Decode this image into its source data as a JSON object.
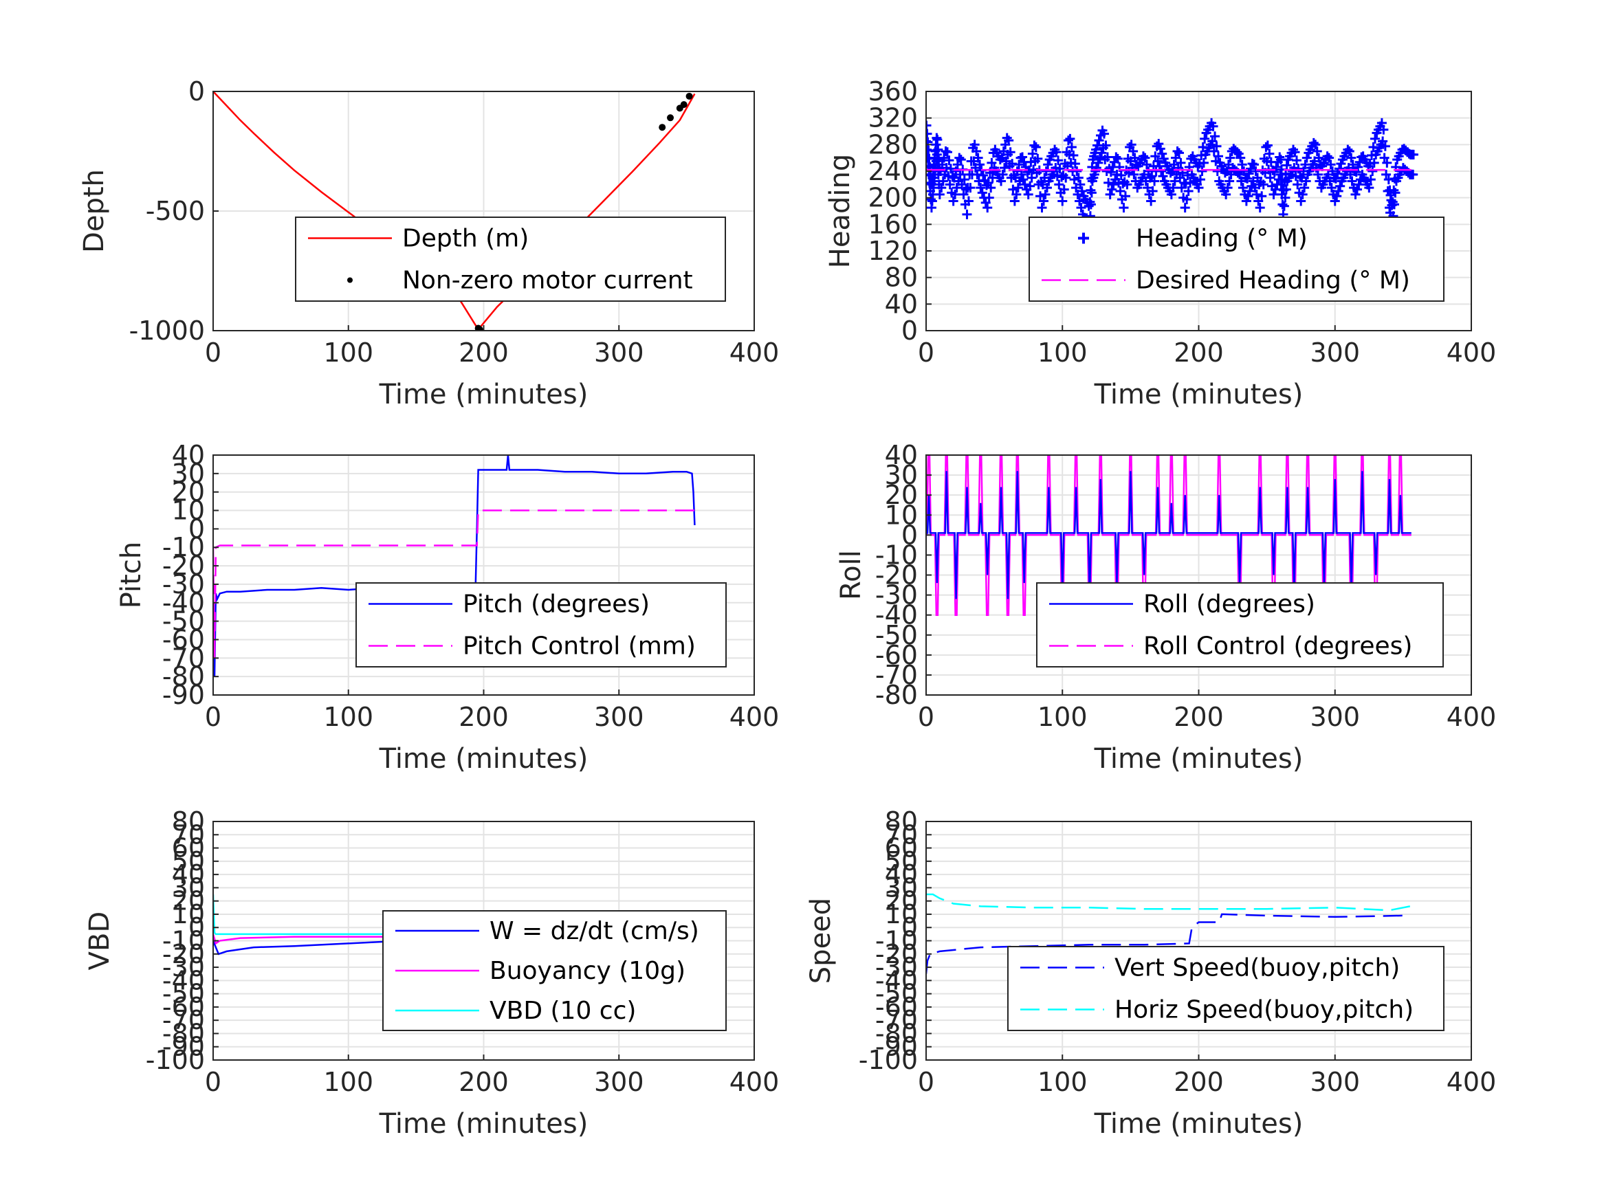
{
  "chart_data": [
    {
      "id": "depth",
      "type": "line",
      "xlabel": "Time (minutes)",
      "ylabel": "Depth",
      "xlim": [
        0,
        400
      ],
      "ylim": [
        -1000,
        0
      ],
      "xticks": [
        "0",
        "100",
        "200",
        "300",
        "400"
      ],
      "yticks": [
        {
          "v": -1000,
          "t": "-1000"
        },
        {
          "v": -500,
          "t": "-500"
        },
        {
          "v": 0,
          "t": "0"
        }
      ],
      "grid": true,
      "legend": "lower-center",
      "series": [
        {
          "name": "Depth (m)",
          "color": "#ff0000",
          "style": "solid",
          "x": [
            0,
            10,
            20,
            30,
            45,
            60,
            80,
            100,
            120,
            140,
            160,
            180,
            196,
            210,
            230,
            250,
            270,
            290,
            310,
            330,
            345,
            356
          ],
          "y": [
            0,
            -60,
            -120,
            -175,
            -255,
            -330,
            -420,
            -505,
            -590,
            -675,
            -760,
            -850,
            -995,
            -900,
            -790,
            -680,
            -565,
            -450,
            -335,
            -215,
            -120,
            -10
          ]
        },
        {
          "name": "Non-zero motor current",
          "color": "#000000",
          "style": "dots",
          "x": [
            196,
            197,
            332,
            338,
            345,
            348,
            352
          ],
          "y": [
            -990,
            -995,
            -150,
            -110,
            -70,
            -55,
            -20
          ]
        }
      ]
    },
    {
      "id": "heading",
      "type": "scatter",
      "xlabel": "Time (minutes)",
      "ylabel": "Heading",
      "xlim": [
        0,
        400
      ],
      "ylim": [
        0,
        360
      ],
      "xticks": [
        "0",
        "100",
        "200",
        "300",
        "400"
      ],
      "yticks": [
        {
          "v": 0,
          "t": "0"
        },
        {
          "v": 40,
          "t": "40"
        },
        {
          "v": 80,
          "t": "80"
        },
        {
          "v": 120,
          "t": "120"
        },
        {
          "v": 160,
          "t": "160"
        },
        {
          "v": 200,
          "t": "200"
        },
        {
          "v": 240,
          "t": "240"
        },
        {
          "v": 280,
          "t": "280"
        },
        {
          "v": 320,
          "t": "320"
        },
        {
          "v": 360,
          "t": "360"
        }
      ],
      "grid": true,
      "legend": "lower-right",
      "series": [
        {
          "name": "Heading (° M)",
          "color": "#0000ff",
          "style": "plus",
          "x": [
            0,
            2,
            4,
            6,
            8,
            10,
            15,
            20,
            25,
            30,
            35,
            40,
            45,
            50,
            55,
            60,
            65,
            70,
            75,
            80,
            85,
            90,
            95,
            100,
            105,
            110,
            115,
            120,
            122,
            125,
            130,
            135,
            140,
            145,
            150,
            155,
            160,
            165,
            170,
            175,
            180,
            185,
            190,
            195,
            200,
            205,
            210,
            215,
            220,
            225,
            230,
            235,
            240,
            245,
            250,
            255,
            260,
            262,
            265,
            270,
            275,
            280,
            285,
            290,
            295,
            300,
            305,
            310,
            315,
            320,
            325,
            330,
            335,
            340,
            342,
            345,
            350,
            355
          ],
          "y": [
            300,
            250,
            200,
            240,
            280,
            220,
            260,
            210,
            250,
            190,
            270,
            230,
            200,
            260,
            240,
            280,
            210,
            250,
            220,
            270,
            200,
            240,
            260,
            210,
            280,
            230,
            190,
            170,
            240,
            260,
            290,
            220,
            250,
            200,
            270,
            230,
            250,
            210,
            270,
            240,
            220,
            260,
            200,
            250,
            230,
            280,
            300,
            240,
            220,
            260,
            250,
            210,
            240,
            200,
            270,
            220,
            250,
            190,
            240,
            260,
            210,
            250,
            270,
            230,
            250,
            210,
            240,
            260,
            220,
            250,
            230,
            280,
            300,
            200,
            170,
            240,
            260,
            250
          ]
        },
        {
          "name": "Desired Heading (° M)",
          "color": "#ff00ff",
          "style": "dashed",
          "x": [
            0,
            356
          ],
          "y": [
            242,
            242
          ]
        }
      ]
    },
    {
      "id": "pitch",
      "type": "line",
      "xlabel": "Time (minutes)",
      "ylabel": "Pitch",
      "xlim": [
        0,
        400
      ],
      "ylim": [
        -90,
        40
      ],
      "xticks": [
        "0",
        "100",
        "200",
        "300",
        "400"
      ],
      "yticks": [
        {
          "v": -90,
          "t": "-90"
        },
        {
          "v": -80,
          "t": "-80"
        },
        {
          "v": -70,
          "t": "-70"
        },
        {
          "v": -60,
          "t": "-60"
        },
        {
          "v": -50,
          "t": "-50"
        },
        {
          "v": -40,
          "t": "-40"
        },
        {
          "v": -30,
          "t": "-30"
        },
        {
          "v": -20,
          "t": "-20"
        },
        {
          "v": -10,
          "t": "-10"
        },
        {
          "v": 0,
          "t": "0"
        },
        {
          "v": 10,
          "t": "10"
        },
        {
          "v": 20,
          "t": "20"
        },
        {
          "v": 30,
          "t": "30"
        },
        {
          "v": 40,
          "t": "40"
        }
      ],
      "grid": true,
      "legend": "lower-right",
      "series": [
        {
          "name": "Pitch (degrees)",
          "color": "#0000ff",
          "style": "solid",
          "x": [
            0,
            1,
            2,
            3,
            5,
            10,
            20,
            40,
            60,
            80,
            100,
            120,
            140,
            160,
            180,
            194,
            195,
            196,
            200,
            217,
            218,
            219,
            240,
            260,
            280,
            300,
            320,
            340,
            350,
            354,
            355,
            356
          ],
          "y": [
            -40,
            -80,
            -35,
            -38,
            -35,
            -34,
            -34,
            -33,
            -33,
            -32,
            -33,
            -32,
            -32,
            -31,
            -31,
            -31,
            0,
            32,
            32,
            32,
            40,
            32,
            32,
            31,
            31,
            30,
            30,
            31,
            31,
            30,
            20,
            2
          ]
        },
        {
          "name": "Pitch Control (mm)",
          "color": "#ff00ff",
          "style": "dashed",
          "x": [
            0,
            1,
            2,
            5,
            195,
            196,
            356
          ],
          "y": [
            -10,
            -70,
            -10,
            -9,
            -9,
            10,
            10
          ]
        }
      ]
    },
    {
      "id": "roll",
      "type": "line",
      "xlabel": "Time (minutes)",
      "ylabel": "Roll",
      "xlim": [
        0,
        400
      ],
      "ylim": [
        -80,
        40
      ],
      "xticks": [
        "0",
        "100",
        "200",
        "300",
        "400"
      ],
      "yticks": [
        {
          "v": -80,
          "t": "-80"
        },
        {
          "v": -70,
          "t": "-70"
        },
        {
          "v": -60,
          "t": "-60"
        },
        {
          "v": -50,
          "t": "-50"
        },
        {
          "v": -40,
          "t": "-40"
        },
        {
          "v": -30,
          "t": "-30"
        },
        {
          "v": -20,
          "t": "-20"
        },
        {
          "v": -10,
          "t": "-10"
        },
        {
          "v": 0,
          "t": "0"
        },
        {
          "v": 10,
          "t": "10"
        },
        {
          "v": 20,
          "t": "20"
        },
        {
          "v": 30,
          "t": "30"
        },
        {
          "v": 40,
          "t": "40"
        }
      ],
      "grid": true,
      "legend": "lower-right",
      "spikes": [
        {
          "x": 2,
          "y": 25
        },
        {
          "x": 8,
          "y": -30
        },
        {
          "x": 15,
          "y": 40
        },
        {
          "x": 22,
          "y": -40
        },
        {
          "x": 30,
          "y": 30
        },
        {
          "x": 40,
          "y": 20
        },
        {
          "x": 45,
          "y": -25
        },
        {
          "x": 55,
          "y": 30
        },
        {
          "x": 60,
          "y": -40
        },
        {
          "x": 67,
          "y": 40
        },
        {
          "x": 72,
          "y": -30
        },
        {
          "x": 90,
          "y": 30
        },
        {
          "x": 100,
          "y": -35
        },
        {
          "x": 110,
          "y": 30
        },
        {
          "x": 120,
          "y": -40
        },
        {
          "x": 128,
          "y": 35
        },
        {
          "x": 140,
          "y": -30
        },
        {
          "x": 150,
          "y": 40
        },
        {
          "x": 160,
          "y": -25
        },
        {
          "x": 170,
          "y": 30
        },
        {
          "x": 180,
          "y": 20
        },
        {
          "x": 190,
          "y": 25
        },
        {
          "x": 215,
          "y": 25
        },
        {
          "x": 230,
          "y": -30
        },
        {
          "x": 245,
          "y": 30
        },
        {
          "x": 255,
          "y": -25
        },
        {
          "x": 265,
          "y": 30
        },
        {
          "x": 270,
          "y": -35
        },
        {
          "x": 280,
          "y": 30
        },
        {
          "x": 292,
          "y": -30
        },
        {
          "x": 300,
          "y": 35
        },
        {
          "x": 312,
          "y": -35
        },
        {
          "x": 320,
          "y": 40
        },
        {
          "x": 330,
          "y": -25
        },
        {
          "x": 340,
          "y": 35
        },
        {
          "x": 348,
          "y": 25
        }
      ],
      "series": [
        {
          "name": "Roll (degrees)",
          "color": "#0000ff",
          "style": "spikes",
          "baseline": 1
        },
        {
          "name": "Roll Control (degrees)",
          "color": "#ff00ff",
          "style": "spikes",
          "baseline": 0
        }
      ]
    },
    {
      "id": "vbd",
      "type": "line",
      "xlabel": "Time (minutes)",
      "ylabel": "VBD",
      "xlim": [
        0,
        400
      ],
      "ylim": [
        -100,
        80
      ],
      "xticks": [
        "0",
        "100",
        "200",
        "300",
        "400"
      ],
      "yticks": [
        {
          "v": -100,
          "t": "-100"
        },
        {
          "v": -90,
          "t": "-90"
        },
        {
          "v": -80,
          "t": "-80"
        },
        {
          "v": -70,
          "t": "-70"
        },
        {
          "v": -60,
          "t": "-60"
        },
        {
          "v": -50,
          "t": "-50"
        },
        {
          "v": -40,
          "t": "-40"
        },
        {
          "v": -30,
          "t": "-30"
        },
        {
          "v": -20,
          "t": "-20"
        },
        {
          "v": -10,
          "t": "-10"
        },
        {
          "v": 0,
          "t": "0"
        },
        {
          "v": 10,
          "t": "10"
        },
        {
          "v": 20,
          "t": "20"
        },
        {
          "v": 30,
          "t": "30"
        },
        {
          "v": 40,
          "t": "40"
        },
        {
          "v": 50,
          "t": "50"
        },
        {
          "v": 60,
          "t": "60"
        },
        {
          "v": 70,
          "t": "70"
        },
        {
          "v": 80,
          "t": "80"
        }
      ],
      "grid": true,
      "legend": "lower-right",
      "series": [
        {
          "name": "W = dz/dt (cm/s)",
          "color": "#0000ff",
          "style": "solid",
          "x": [
            0,
            2,
            4,
            10,
            30,
            60,
            100,
            140,
            180,
            194,
            196,
            200,
            250,
            300,
            340,
            355
          ],
          "y": [
            -10,
            -15,
            -20,
            -18,
            -15,
            -14,
            -12,
            -10,
            -8,
            -8,
            8,
            10,
            10,
            11,
            12,
            12
          ]
        },
        {
          "name": "Buoyancy (10g)",
          "color": "#ff00ff",
          "style": "solid",
          "x": [
            0,
            2,
            5,
            20,
            60,
            120,
            194,
            196,
            250,
            300,
            355
          ],
          "y": [
            -5,
            -12,
            -10,
            -8,
            -7,
            -7,
            -7,
            6,
            6,
            7,
            7
          ]
        },
        {
          "name": "VBD (10 cc)",
          "color": "#00ffff",
          "style": "solid",
          "x": [
            0,
            1,
            2,
            10,
            60,
            120,
            194,
            196,
            250,
            300,
            355
          ],
          "y": [
            25,
            -4,
            -5,
            -5,
            -5,
            -5,
            -5,
            4,
            5,
            5,
            5
          ]
        }
      ]
    },
    {
      "id": "speed",
      "type": "line",
      "xlabel": "Time (minutes)",
      "ylabel": "Speed",
      "xlim": [
        0,
        400
      ],
      "ylim": [
        -100,
        80
      ],
      "xticks": [
        "0",
        "100",
        "200",
        "300",
        "400"
      ],
      "yticks": [
        {
          "v": -100,
          "t": "-100"
        },
        {
          "v": -90,
          "t": "-90"
        },
        {
          "v": -80,
          "t": "-80"
        },
        {
          "v": -70,
          "t": "-70"
        },
        {
          "v": -60,
          "t": "-60"
        },
        {
          "v": -50,
          "t": "-50"
        },
        {
          "v": -40,
          "t": "-40"
        },
        {
          "v": -30,
          "t": "-30"
        },
        {
          "v": -20,
          "t": "-20"
        },
        {
          "v": -10,
          "t": "-10"
        },
        {
          "v": 0,
          "t": "0"
        },
        {
          "v": 10,
          "t": "10"
        },
        {
          "v": 20,
          "t": "20"
        },
        {
          "v": 30,
          "t": "30"
        },
        {
          "v": 40,
          "t": "40"
        },
        {
          "v": 50,
          "t": "50"
        },
        {
          "v": 60,
          "t": "60"
        },
        {
          "v": 70,
          "t": "70"
        },
        {
          "v": 80,
          "t": "80"
        }
      ],
      "grid": true,
      "legend": "lower-right",
      "series": [
        {
          "name": "Vert Speed(buoy,pitch)",
          "color": "#0000ff",
          "style": "dashed",
          "x": [
            0,
            1,
            3,
            10,
            40,
            80,
            120,
            160,
            193,
            195,
            200,
            215,
            217,
            250,
            300,
            350,
            355
          ],
          "y": [
            -35,
            -25,
            -20,
            -18,
            -15,
            -14,
            -13,
            -13,
            -12,
            0,
            4,
            4,
            10,
            9,
            8,
            9,
            9
          ]
        },
        {
          "name": "Horiz Speed(buoy,pitch)",
          "color": "#00ffff",
          "style": "dashed",
          "x": [
            0,
            5,
            10,
            20,
            40,
            80,
            120,
            160,
            200,
            250,
            300,
            340,
            350,
            355
          ],
          "y": [
            25,
            25,
            22,
            18,
            16,
            15,
            15,
            14,
            14,
            14,
            15,
            13,
            15,
            16
          ]
        }
      ]
    }
  ]
}
